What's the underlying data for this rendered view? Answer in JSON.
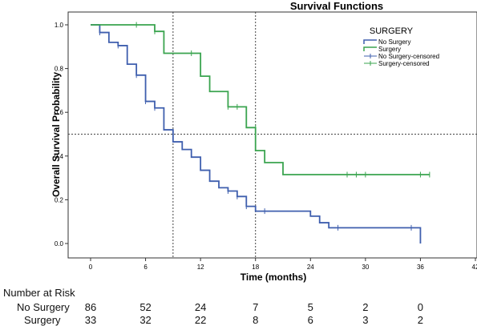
{
  "chart_data": {
    "type": "line",
    "title": "Survival Functions",
    "xlabel": "Time (months)",
    "ylabel": "Overall Survival Probability",
    "xlim": [
      0,
      42
    ],
    "ylim": [
      0,
      1.05
    ],
    "x_ticks": [
      0,
      6,
      12,
      18,
      24,
      30,
      36,
      42
    ],
    "y_ticks": [
      0.0,
      0.2,
      0.4,
      0.6,
      0.8,
      1.0
    ],
    "y_tick_labels": [
      "0.0",
      "0.2",
      "0.4",
      "0.6",
      "0.8",
      "1.0"
    ],
    "grid": false,
    "reference_lines": {
      "horizontal": [
        0.5
      ],
      "vertical": [
        9,
        18
      ]
    },
    "legend": {
      "title": "SURGERY",
      "placement": "top-right",
      "entries": [
        "No Surgery",
        "Surgery",
        "No Surgery-censored",
        "Surgery-censored"
      ]
    },
    "series": [
      {
        "name": "No Surgery",
        "color": "#3f5fae",
        "steps": [
          [
            0,
            1.0
          ],
          [
            1,
            0.965
          ],
          [
            2,
            0.92
          ],
          [
            3,
            0.905
          ],
          [
            4,
            0.82
          ],
          [
            5,
            0.77
          ],
          [
            6,
            0.65
          ],
          [
            7,
            0.62
          ],
          [
            8,
            0.52
          ],
          [
            9,
            0.465
          ],
          [
            10,
            0.43
          ],
          [
            11,
            0.395
          ],
          [
            12,
            0.335
          ],
          [
            13,
            0.285
          ],
          [
            14,
            0.255
          ],
          [
            15,
            0.24
          ],
          [
            16,
            0.215
          ],
          [
            17,
            0.17
          ],
          [
            18,
            0.148
          ],
          [
            24,
            0.125
          ],
          [
            25,
            0.095
          ],
          [
            26,
            0.072
          ],
          [
            36,
            0.0
          ]
        ],
        "end_x": 36,
        "censored": [
          [
            1,
            0.965
          ],
          [
            3,
            0.905
          ],
          [
            5,
            0.77
          ],
          [
            6,
            0.65
          ],
          [
            7,
            0.62
          ],
          [
            15,
            0.24
          ],
          [
            16,
            0.215
          ],
          [
            17,
            0.17
          ],
          [
            19,
            0.148
          ],
          [
            27,
            0.072
          ],
          [
            35,
            0.072
          ]
        ]
      },
      {
        "name": "Surgery",
        "color": "#3aa44f",
        "steps": [
          [
            0,
            1.0
          ],
          [
            7,
            0.97
          ],
          [
            8,
            0.87
          ],
          [
            12,
            0.765
          ],
          [
            13,
            0.695
          ],
          [
            15,
            0.625
          ],
          [
            17,
            0.53
          ],
          [
            18,
            0.425
          ],
          [
            19,
            0.37
          ],
          [
            21,
            0.315
          ]
        ],
        "end_x": 37,
        "censored": [
          [
            5,
            1.0
          ],
          [
            7,
            0.97
          ],
          [
            11,
            0.87
          ],
          [
            15,
            0.625
          ],
          [
            16,
            0.625
          ],
          [
            18,
            0.53
          ],
          [
            28,
            0.315
          ],
          [
            29,
            0.315
          ],
          [
            30,
            0.315
          ],
          [
            36,
            0.315
          ],
          [
            37,
            0.315
          ]
        ]
      }
    ]
  },
  "risk_table": {
    "title": "Number at Risk",
    "rows": [
      {
        "label": "No Surgery",
        "values": [
          "86",
          "52",
          "24",
          "7",
          "5",
          "2",
          "0"
        ]
      },
      {
        "label": "Surgery",
        "values": [
          "33",
          "32",
          "22",
          "8",
          "6",
          "3",
          "2"
        ]
      }
    ]
  }
}
